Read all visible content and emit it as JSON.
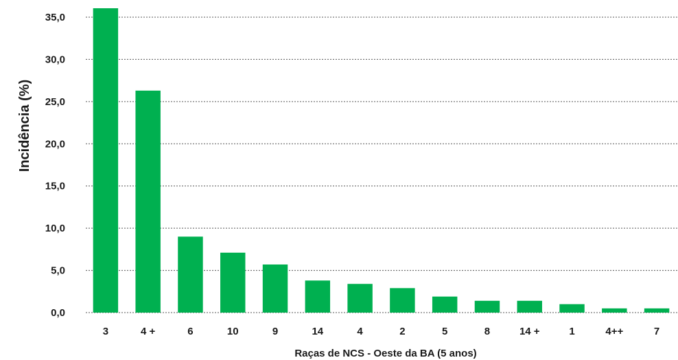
{
  "chart_data": {
    "type": "bar",
    "title": "",
    "xlabel": "Raças de NCS - Oeste da BA (5 anos)",
    "ylabel": "Incidência (%)",
    "categories": [
      "3",
      "4 +",
      "6",
      "10",
      "9",
      "14",
      "4",
      "2",
      "5",
      "8",
      "14 +",
      "1",
      "4++",
      "7"
    ],
    "values": [
      36.1,
      26.3,
      9.0,
      7.1,
      5.7,
      3.8,
      3.4,
      2.9,
      1.9,
      1.4,
      1.4,
      1.0,
      0.5,
      0.5
    ],
    "ylim": [
      0,
      35
    ],
    "yticks": [
      "0,0",
      "5,0",
      "10,0",
      "15,0",
      "20,0",
      "25,0",
      "30,0",
      "35,0"
    ],
    "grid": true,
    "legend": "none",
    "bar_color": "#00b050",
    "grid_color": "#555555"
  }
}
